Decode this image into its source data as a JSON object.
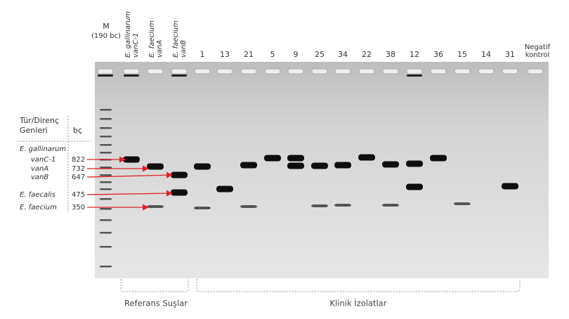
{
  "ladder": {
    "label": "M",
    "sublabel": "(190 bc)"
  },
  "reference_lanes": [
    [
      "E. gallinarum",
      "vanC-1"
    ],
    [
      "E. faecium",
      "vanA"
    ],
    [
      "E. faecium",
      "vanB"
    ]
  ],
  "clinical_lanes": [
    "1",
    "13",
    "21",
    "5",
    "9",
    "25",
    "34",
    "22",
    "38",
    "12",
    "36",
    "15",
    "14",
    "31"
  ],
  "negative_control": [
    "Negatif",
    "kontrol"
  ],
  "legend": {
    "header": [
      "Tür/Direnç",
      "Genleri"
    ],
    "size_header": "bç",
    "rows": [
      {
        "name": "E. gallinarum"
      },
      {
        "name": "vanC-1",
        "size": 822
      },
      {
        "name": "vanA",
        "size": 732
      },
      {
        "name": "vanB",
        "size": 647
      },
      {
        "name": "E. faecalis",
        "size": 475
      },
      {
        "name": "E. faecium",
        "size": 350
      }
    ]
  },
  "groups": {
    "reference": "Referans Suşlar",
    "clinical": "Klinik İzolatlar"
  }
}
